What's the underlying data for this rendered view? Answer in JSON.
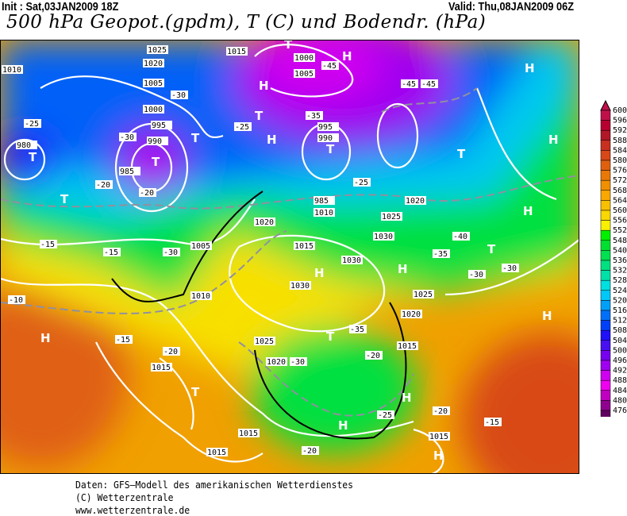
{
  "header": {
    "init": "Init : Sat,03JAN2009 18Z",
    "valid": "Valid: Thu,08JAN2009 06Z",
    "title": "500 hPa Geopot.(gpdm), T (C) und Bodendr. (hPa)"
  },
  "legend": {
    "labels": [
      "600",
      "596",
      "592",
      "588",
      "584",
      "580",
      "576",
      "572",
      "568",
      "564",
      "560",
      "556",
      "552",
      "548",
      "540",
      "536",
      "532",
      "528",
      "524",
      "520",
      "516",
      "512",
      "508",
      "504",
      "500",
      "496",
      "492",
      "488",
      "484",
      "480",
      "476"
    ],
    "colors": [
      "#c0104a",
      "#b80030",
      "#b01828",
      "#c83020",
      "#d84818",
      "#e06010",
      "#e87808",
      "#f09000",
      "#f8a800",
      "#f8c000",
      "#f8d800",
      "#f8f000",
      "#00f000",
      "#00e030",
      "#00e050",
      "#00e080",
      "#00e0a8",
      "#00e0e0",
      "#00c8f8",
      "#00a0f8",
      "#0070f8",
      "#0040f8",
      "#2010f8",
      "#4810f0",
      "#7800f0",
      "#a000f0",
      "#d000f0",
      "#f000f0",
      "#c000c0",
      "#900090",
      "#600060"
    ]
  },
  "map": {
    "pressure_highs": [
      "H",
      "H",
      "H",
      "H",
      "H",
      "H",
      "H",
      "H",
      "H",
      "H",
      "H",
      "H",
      "H"
    ],
    "pressure_lows": [
      "T",
      "T",
      "T",
      "T",
      "T",
      "T",
      "T",
      "T",
      "T",
      "T",
      "T"
    ],
    "isobar_labels": [
      "1025",
      "1020",
      "1015",
      "1010",
      "1005",
      "1000",
      "995",
      "990",
      "985",
      "980",
      "1000",
      "1005",
      "995",
      "990",
      "985",
      "1010",
      "1015",
      "1020",
      "1025",
      "1030",
      "1030",
      "1025",
      "1020",
      "1015",
      "1010",
      "1005",
      "1020",
      "1015",
      "1015",
      "1015",
      "1015",
      "1020",
      "1025",
      "1030"
    ],
    "temp_labels": [
      "-45",
      "-45",
      "-45",
      "-35",
      "-30",
      "-30",
      "-25",
      "-25",
      "-20",
      "-20",
      "-15",
      "-15",
      "-10",
      "-15",
      "-20",
      "-20",
      "-25",
      "-30",
      "-30",
      "-35",
      "-40",
      "-35",
      "-30",
      "-30",
      "-20",
      "-15",
      "-20",
      "-25"
    ]
  },
  "footer": {
    "line1": "Daten: GFS—Modell des amerikanischen Wetterdienstes",
    "line2": "(C) Wetterzentrale",
    "line3": "www.wetterzentrale.de"
  }
}
